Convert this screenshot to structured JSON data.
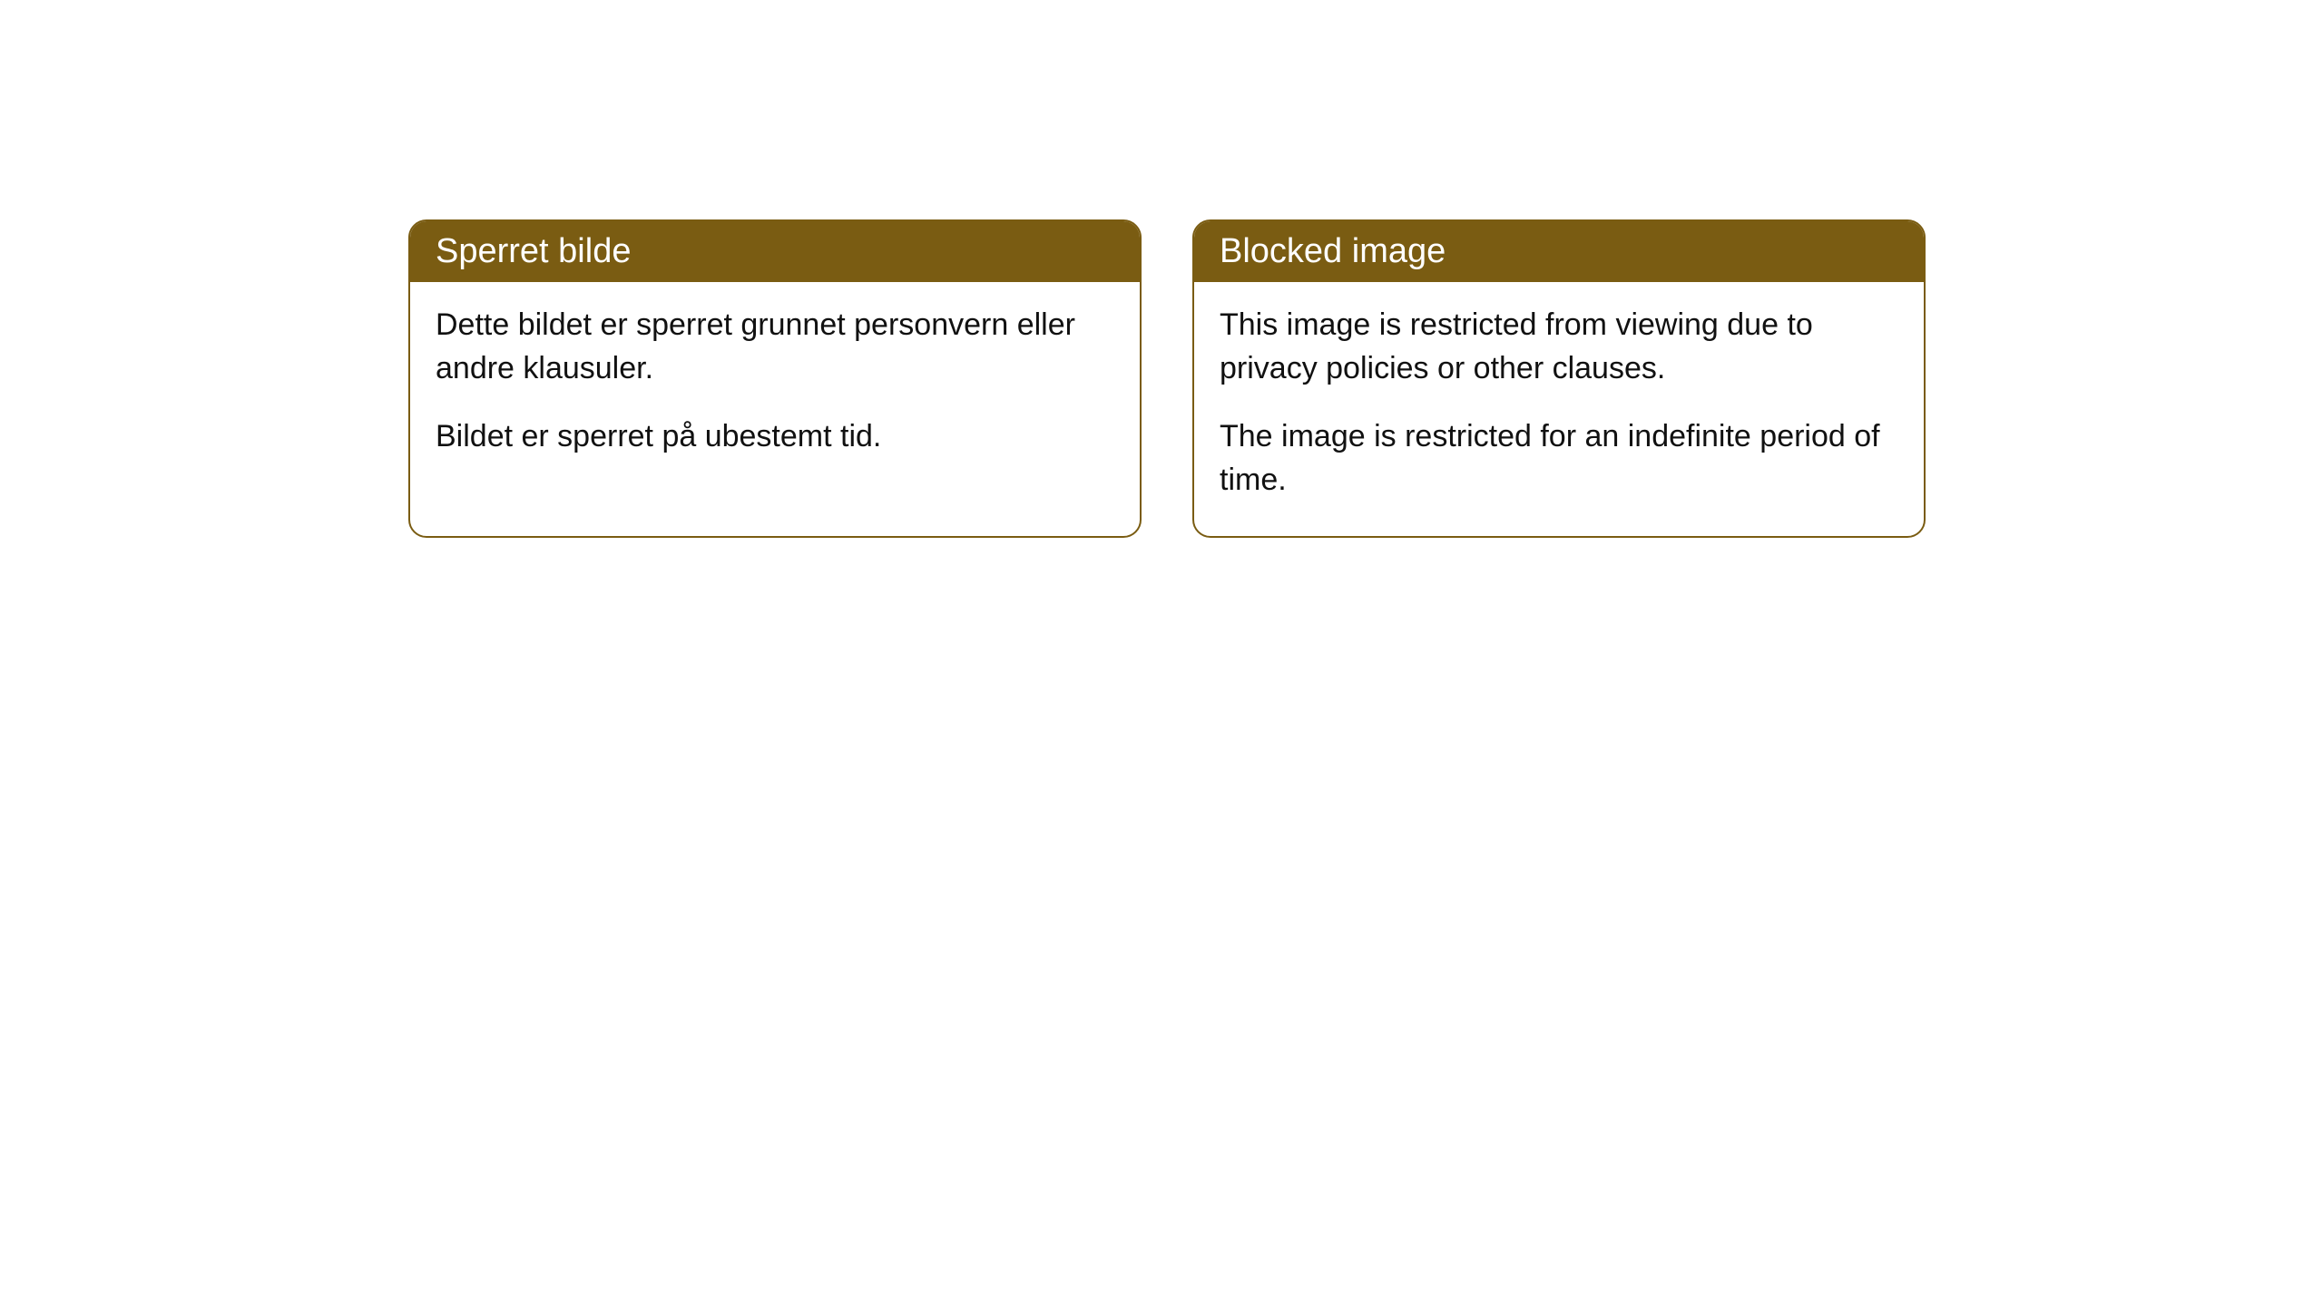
{
  "cards": [
    {
      "title": "Sperret bilde",
      "paragraph1": "Dette bildet er sperret grunnet personvern eller andre klausuler.",
      "paragraph2": "Bildet er sperret på ubestemt tid."
    },
    {
      "title": "Blocked image",
      "paragraph1": "This image is restricted from viewing due to privacy policies or other clauses.",
      "paragraph2": "The image is restricted for an indefinite period of time."
    }
  ],
  "styling": {
    "header_background": "#7a5c12",
    "header_text_color": "#ffffff",
    "body_text_color": "#111111",
    "border_color": "#7a5c12",
    "card_background": "#ffffff",
    "page_background": "#ffffff",
    "title_fontsize": 38,
    "body_fontsize": 34,
    "border_radius": 20,
    "border_width": 2
  }
}
